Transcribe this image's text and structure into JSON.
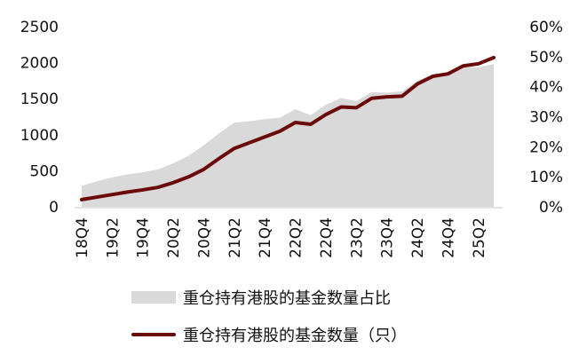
{
  "chart_data": {
    "type": "line",
    "x": [
      "18Q4",
      "19Q1",
      "19Q2",
      "19Q3",
      "19Q4",
      "20Q1",
      "20Q2",
      "20Q3",
      "20Q4",
      "21Q1",
      "21Q2",
      "21Q3",
      "21Q4",
      "22Q1",
      "22Q2",
      "22Q3",
      "22Q4",
      "23Q1",
      "23Q2",
      "23Q3",
      "23Q4",
      "24Q1",
      "24Q2",
      "24Q3",
      "24Q4",
      "25Q1",
      "25Q2",
      "25Q3"
    ],
    "x_tick_labels": [
      "18Q4",
      "19Q2",
      "19Q4",
      "20Q2",
      "20Q4",
      "21Q2",
      "21Q4",
      "22Q2",
      "22Q4",
      "23Q2",
      "23Q4",
      "24Q2",
      "24Q4",
      "25Q2"
    ],
    "y_left": {
      "ticks": [
        "0",
        "500",
        "1000",
        "1500",
        "2000",
        "2500"
      ],
      "lim": [
        0,
        2500
      ]
    },
    "y_right": {
      "ticks": [
        "0%",
        "10%",
        "20%",
        "30%",
        "40%",
        "50%",
        "60%"
      ],
      "lim": [
        0,
        0.6
      ]
    },
    "series": [
      {
        "name": "重仓持有港股的基金数量占比",
        "kind": "area",
        "axis": "right",
        "color": "#d9d9d9",
        "values": [
          0.07,
          0.085,
          0.098,
          0.108,
          0.115,
          0.125,
          0.145,
          0.17,
          0.205,
          0.245,
          0.28,
          0.285,
          0.292,
          0.297,
          0.325,
          0.305,
          0.34,
          0.362,
          0.352,
          0.382,
          0.38,
          0.385,
          0.42,
          0.44,
          0.445,
          0.465,
          0.465,
          0.475
        ]
      },
      {
        "name": "重仓持有港股的基金数量（只）",
        "kind": "line",
        "axis": "left",
        "color": "#6b0a0a",
        "values": [
          100,
          135,
          170,
          205,
          235,
          270,
          335,
          415,
          520,
          670,
          810,
          890,
          970,
          1050,
          1170,
          1145,
          1280,
          1385,
          1375,
          1505,
          1525,
          1535,
          1705,
          1810,
          1845,
          1955,
          1985,
          2070
        ]
      }
    ],
    "grid": false,
    "legend_position": "bottom"
  }
}
